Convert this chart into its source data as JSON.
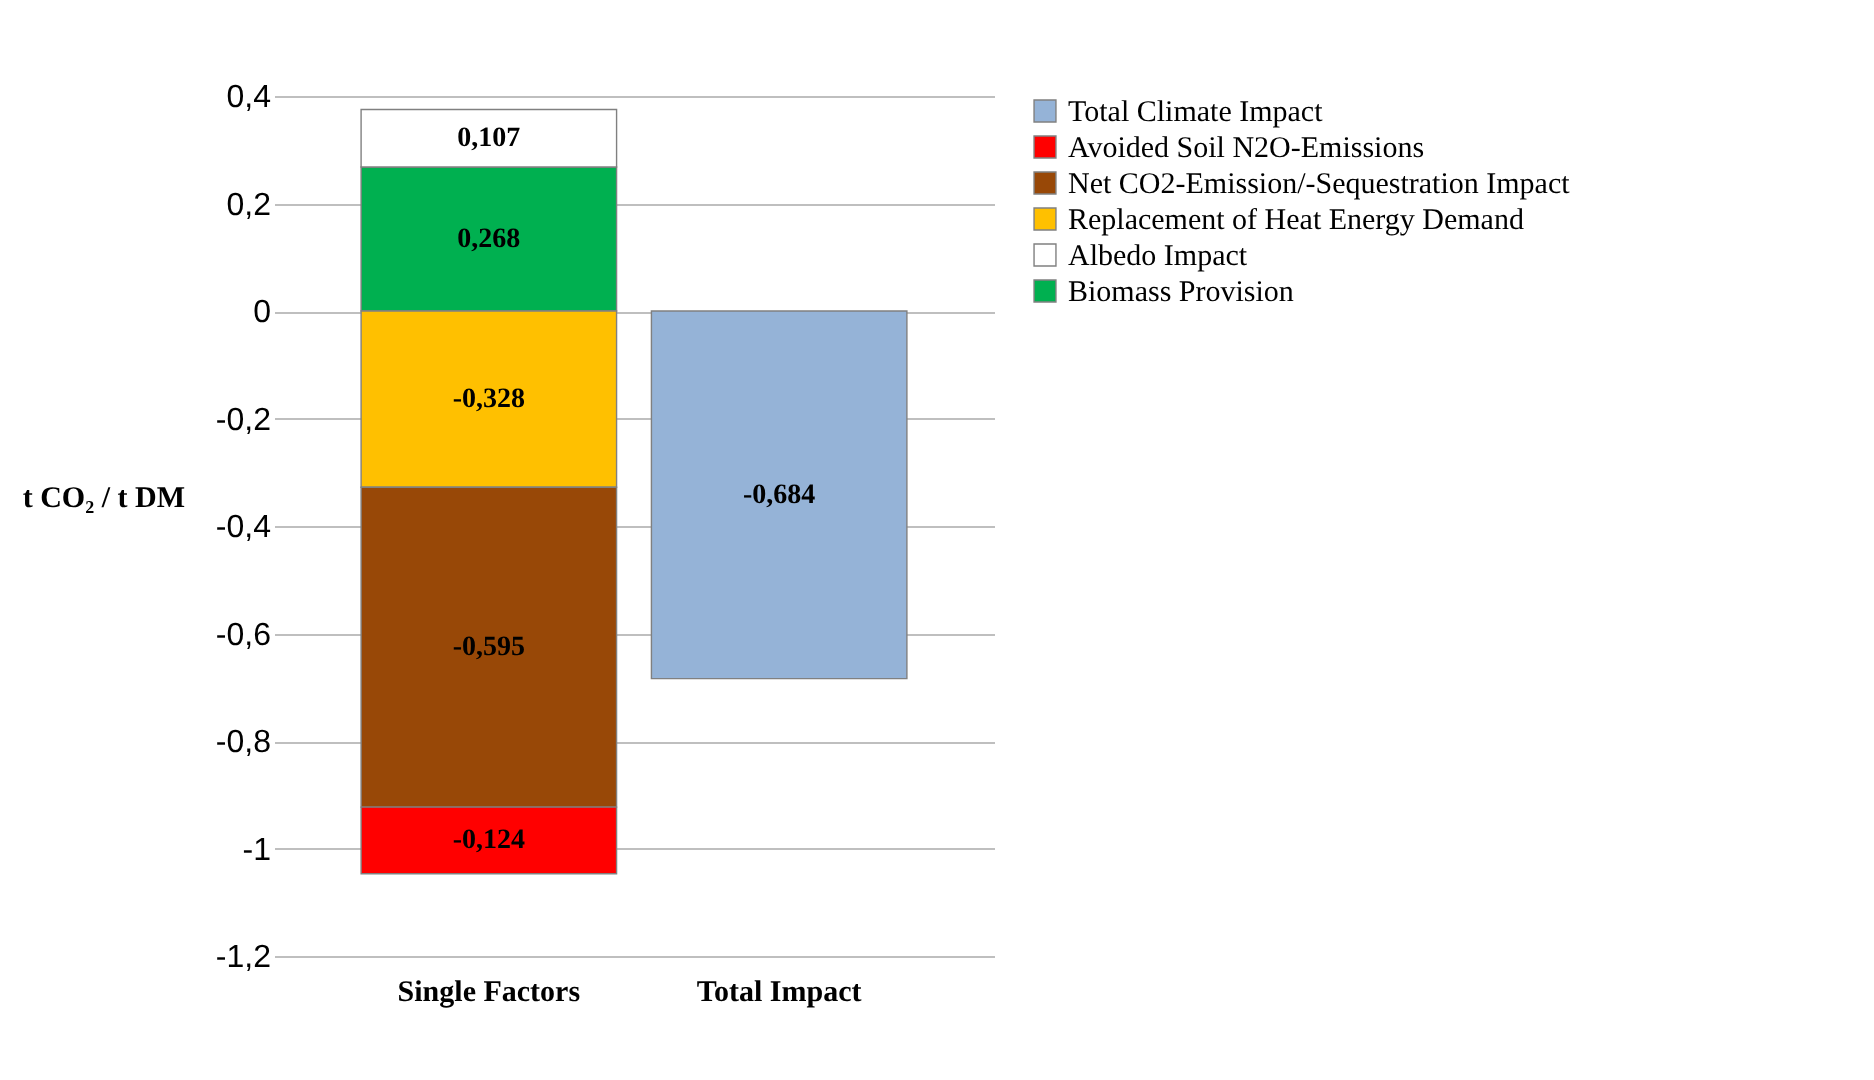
{
  "chart_data": {
    "type": "bar",
    "stacked": true,
    "categories": [
      "Single Factors",
      "Total Impact"
    ],
    "ylabel": "t CO₂ / t DM",
    "ylim": [
      -1.2,
      0.4
    ],
    "yticks": [
      {
        "value": -1.2,
        "label": "-1,2"
      },
      {
        "value": -1,
        "label": "-1"
      },
      {
        "value": -0.8,
        "label": "-0,8"
      },
      {
        "value": -0.6,
        "label": "-0,6"
      },
      {
        "value": -0.4,
        "label": "-0,4"
      },
      {
        "value": -0.2,
        "label": "-0,2"
      },
      {
        "value": 0,
        "label": "0"
      },
      {
        "value": 0.2,
        "label": "0,2"
      },
      {
        "value": 0.4,
        "label": "0,4"
      }
    ],
    "grid": "y",
    "legend": "right",
    "series": [
      {
        "name": "Biomass Provision",
        "color": "#00b050",
        "values": [
          0.268,
          null
        ],
        "value_labels": [
          "0,268",
          null
        ]
      },
      {
        "name": "Albedo Impact",
        "color": "#ffffff",
        "values": [
          0.107,
          null
        ],
        "value_labels": [
          "0,107",
          null
        ]
      },
      {
        "name": "Replacement of Heat Energy Demand",
        "color": "#ffc000",
        "values": [
          -0.328,
          null
        ],
        "value_labels": [
          "-0,328",
          null
        ]
      },
      {
        "name": "Net CO2-Emission/-Sequestration Impact",
        "color": "#984807",
        "values": [
          -0.595,
          null
        ],
        "value_labels": [
          "-0,595",
          null
        ]
      },
      {
        "name": "Avoided Soil N2O-Emissions",
        "color": "#ff0000",
        "values": [
          -0.124,
          null
        ],
        "value_labels": [
          "-0,124",
          null
        ]
      },
      {
        "name": "Total Climate Impact",
        "color": "#95b3d7",
        "values": [
          null,
          -0.684
        ],
        "value_labels": [
          null,
          "-0,684"
        ]
      }
    ]
  }
}
